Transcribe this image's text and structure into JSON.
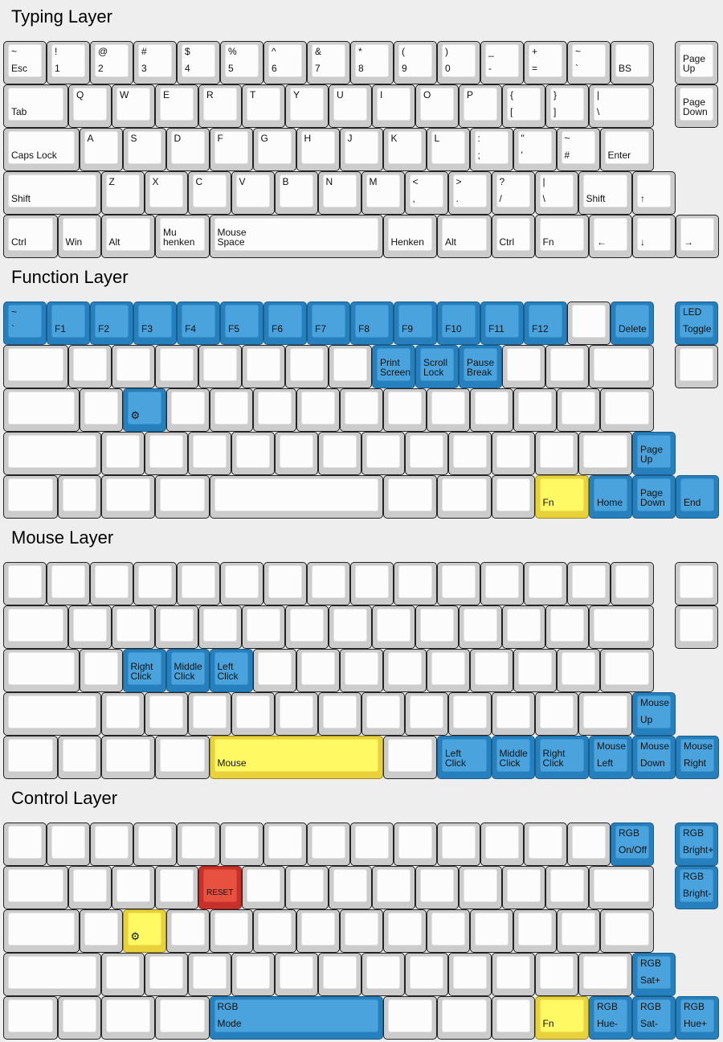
{
  "colors": {
    "blue": "#4aa3dc",
    "yellow": "#fffa64",
    "red": "#e8503f",
    "default": "#fcfcfc"
  },
  "layers": [
    {
      "title": "Typing Layer",
      "rows": [
        [
          {
            "t": "~",
            "b": "Esc"
          },
          {
            "t": "!",
            "b": "1"
          },
          {
            "t": "@",
            "b": "2"
          },
          {
            "t": "#",
            "b": "3"
          },
          {
            "t": "$",
            "b": "4"
          },
          {
            "t": "%",
            "b": "5"
          },
          {
            "t": "^",
            "b": "6"
          },
          {
            "t": "&",
            "b": "7"
          },
          {
            "t": "*",
            "b": "8"
          },
          {
            "t": "(",
            "b": "9"
          },
          {
            "t": ")",
            "b": "0"
          },
          {
            "t": "_",
            "b": "-"
          },
          {
            "t": "+",
            "b": "="
          },
          {
            "t": "~",
            "b": "`"
          },
          {
            "b": "BS"
          },
          {
            "b": "Page\nUp"
          }
        ],
        [
          {
            "b": "Tab"
          },
          {
            "t": "Q"
          },
          {
            "t": "W"
          },
          {
            "t": "E"
          },
          {
            "t": "R"
          },
          {
            "t": "T"
          },
          {
            "t": "Y"
          },
          {
            "t": "U"
          },
          {
            "t": "I"
          },
          {
            "t": "O"
          },
          {
            "t": "P"
          },
          {
            "t": "{",
            "b": "["
          },
          {
            "t": "}",
            "b": "]"
          },
          {
            "t": "|",
            "b": "\\"
          },
          {
            "b": "Page\nDown"
          }
        ],
        [
          {
            "b": "Caps Lock"
          },
          {
            "t": "A"
          },
          {
            "t": "S"
          },
          {
            "t": "D"
          },
          {
            "t": "F"
          },
          {
            "t": "G"
          },
          {
            "t": "H"
          },
          {
            "t": "J"
          },
          {
            "t": "K"
          },
          {
            "t": "L"
          },
          {
            "t": ":",
            "b": ";"
          },
          {
            "t": "\"",
            "b": "'"
          },
          {
            "t": "~",
            "b": "#"
          },
          {
            "b": "Enter"
          }
        ],
        [
          {
            "b": "Shift"
          },
          {
            "t": "Z"
          },
          {
            "t": "X"
          },
          {
            "t": "C"
          },
          {
            "t": "V"
          },
          {
            "t": "B"
          },
          {
            "t": "N"
          },
          {
            "t": "M"
          },
          {
            "t": "<",
            "b": ","
          },
          {
            "t": ">",
            "b": "."
          },
          {
            "t": "?",
            "b": "/"
          },
          {
            "t": "|",
            "b": "\\"
          },
          {
            "b": "Shift"
          },
          {
            "b": "↑"
          }
        ],
        [
          {
            "b": "Ctrl"
          },
          {
            "b": "Win"
          },
          {
            "b": "Alt"
          },
          {
            "b": "Mu\nhenken"
          },
          {
            "b": "Mouse\nSpace"
          },
          {
            "b": "Henken"
          },
          {
            "b": "Alt"
          },
          {
            "b": "Ctrl"
          },
          {
            "b": "Fn"
          },
          {
            "b": "←"
          },
          {
            "b": "↓"
          },
          {
            "b": "→"
          }
        ]
      ]
    },
    {
      "title": "Function Layer",
      "rows": [
        [
          {
            "t": "~",
            "b": "`",
            "c": "blue"
          },
          {
            "b": "F1",
            "c": "blue"
          },
          {
            "b": "F2",
            "c": "blue"
          },
          {
            "b": "F3",
            "c": "blue"
          },
          {
            "b": "F4",
            "c": "blue"
          },
          {
            "b": "F5",
            "c": "blue"
          },
          {
            "b": "F6",
            "c": "blue"
          },
          {
            "b": "F7",
            "c": "blue"
          },
          {
            "b": "F8",
            "c": "blue"
          },
          {
            "b": "F9",
            "c": "blue"
          },
          {
            "b": "F10",
            "c": "blue"
          },
          {
            "b": "F11",
            "c": "blue"
          },
          {
            "b": "F12",
            "c": "blue"
          },
          {},
          {
            "b": "Delete",
            "c": "blue"
          },
          {
            "t": "LED",
            "b": "Toggle",
            "c": "blue"
          }
        ],
        [
          {},
          {},
          {},
          {},
          {},
          {},
          {},
          {},
          {
            "b": "Print\nScreen",
            "c": "blue"
          },
          {
            "b": "Scroll\nLock",
            "c": "blue"
          },
          {
            "b": "Pause\nBreak",
            "c": "blue"
          },
          {},
          {},
          {},
          {}
        ],
        [
          {},
          {},
          {
            "icon": "gear",
            "c": "blue"
          },
          {},
          {},
          {},
          {},
          {},
          {},
          {},
          {},
          {},
          {},
          {}
        ],
        [
          {},
          {},
          {},
          {},
          {},
          {},
          {},
          {},
          {},
          {},
          {},
          {},
          {},
          {
            "b": "Page\nUp",
            "c": "blue"
          }
        ],
        [
          {},
          {},
          {},
          {},
          {},
          {},
          {},
          {},
          {
            "b": "Fn",
            "c": "yellow"
          },
          {
            "b": "Home",
            "c": "blue"
          },
          {
            "b": "Page\nDown",
            "c": "blue"
          },
          {
            "b": "End",
            "c": "blue"
          }
        ]
      ]
    },
    {
      "title": "Mouse Layer",
      "rows": [
        [
          {},
          {},
          {},
          {},
          {},
          {},
          {},
          {},
          {},
          {},
          {},
          {},
          {},
          {},
          {},
          {}
        ],
        [
          {},
          {},
          {},
          {},
          {},
          {},
          {},
          {},
          {},
          {},
          {},
          {},
          {},
          {},
          {}
        ],
        [
          {},
          {},
          {
            "b": "Right\nClick",
            "c": "blue"
          },
          {
            "b": "Middle\nClick",
            "c": "blue"
          },
          {
            "b": "Left\nClick",
            "c": "blue"
          },
          {},
          {},
          {},
          {},
          {},
          {},
          {},
          {},
          {}
        ],
        [
          {},
          {},
          {},
          {},
          {},
          {},
          {},
          {},
          {},
          {},
          {},
          {},
          {},
          {
            "t": "Mouse",
            "b": "Up",
            "c": "blue"
          }
        ],
        [
          {},
          {},
          {},
          {},
          {
            "b": "Mouse",
            "c": "yellow"
          },
          {},
          {
            "b": "Left\nClick",
            "c": "blue"
          },
          {
            "b": "Middle\nClick",
            "c": "blue"
          },
          {
            "b": "Right\nClick",
            "c": "blue"
          },
          {
            "t": "Mouse",
            "b": "Left",
            "c": "blue"
          },
          {
            "t": "Mouse",
            "b": "Down",
            "c": "blue"
          },
          {
            "t": "Mouse",
            "b": "Right",
            "c": "blue"
          }
        ]
      ]
    },
    {
      "title": "Control Layer",
      "rows": [
        [
          {},
          {},
          {},
          {},
          {},
          {},
          {},
          {},
          {},
          {},
          {},
          {},
          {},
          {},
          {
            "t": "RGB",
            "b": "On/Off",
            "c": "blue"
          },
          {
            "t": "RGB",
            "b": "Bright+",
            "c": "blue"
          }
        ],
        [
          {},
          {},
          {},
          {},
          {
            "b": "RESET",
            "c": "red"
          },
          {},
          {},
          {},
          {},
          {},
          {},
          {},
          {},
          {},
          {
            "t": "RGB",
            "b": "Bright-",
            "c": "blue"
          }
        ],
        [
          {},
          {},
          {
            "icon": "gear",
            "c": "yellow"
          },
          {},
          {},
          {},
          {},
          {},
          {},
          {},
          {},
          {},
          {},
          {}
        ],
        [
          {},
          {},
          {},
          {},
          {},
          {},
          {},
          {},
          {},
          {},
          {},
          {},
          {},
          {
            "t": "RGB",
            "b": "Sat+",
            "c": "blue"
          }
        ],
        [
          {},
          {},
          {},
          {},
          {
            "t": "RGB",
            "b": "Mode",
            "c": "blue"
          },
          {},
          {},
          {},
          {
            "b": "Fn",
            "c": "yellow"
          },
          {
            "t": "RGB",
            "b": "Hue-",
            "c": "blue"
          },
          {
            "t": "RGB",
            "b": "Sat-",
            "c": "blue"
          },
          {
            "t": "RGB",
            "b": "Hue+",
            "c": "blue"
          }
        ]
      ]
    }
  ]
}
